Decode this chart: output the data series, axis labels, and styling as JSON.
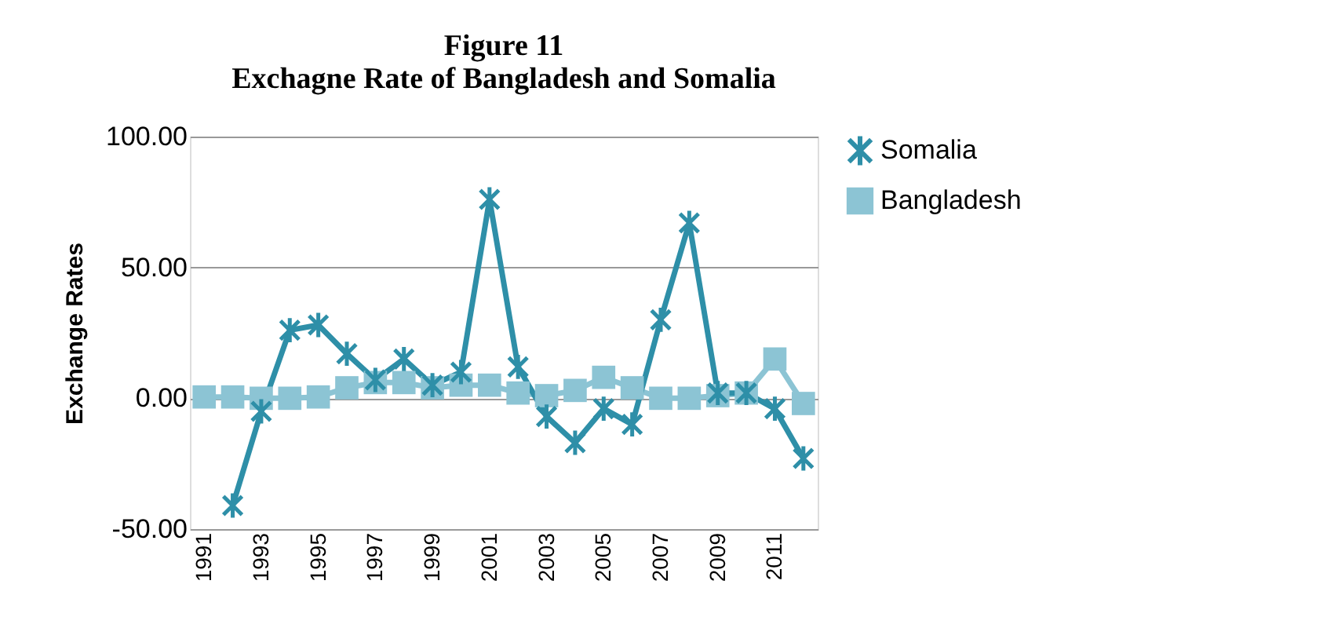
{
  "chart_data": {
    "type": "line",
    "title": [
      "Figure 11",
      "Exchagne Rate of Bangladesh and Somalia"
    ],
    "ylabel": "Exchange Rates",
    "categories": [
      "1991",
      null,
      "1993",
      null,
      "1995",
      null,
      "1997",
      null,
      "1999",
      null,
      "2001",
      null,
      "2003",
      null,
      "2005",
      null,
      "2007",
      null,
      "2009",
      null,
      "2011",
      null
    ],
    "series": [
      {
        "name": "Somalia",
        "color": "#2e8fa8",
        "marker": "cross",
        "values": [
          null,
          -41,
          -5,
          26,
          28,
          17,
          7,
          15,
          5,
          10,
          76,
          12,
          -7,
          -17,
          -4,
          -10,
          30,
          67,
          2,
          2,
          -4,
          -23
        ]
      },
      {
        "name": "Bangladesh",
        "color": "#8cc4d4",
        "marker": "square",
        "values": [
          0.5,
          0.5,
          0,
          0,
          0.5,
          4,
          6,
          6,
          4,
          5,
          5,
          2,
          1,
          3,
          8,
          4,
          0,
          0,
          1,
          2,
          15,
          -2
        ]
      }
    ],
    "ylim": [
      -50,
      100
    ],
    "yticks": [
      {
        "value": -50,
        "label": "-50.00"
      },
      {
        "value": 0,
        "label": "0.00"
      },
      {
        "value": 50,
        "label": "50.00"
      },
      {
        "value": 100,
        "label": "100.00"
      }
    ],
    "grid": "y",
    "legend": "right"
  }
}
